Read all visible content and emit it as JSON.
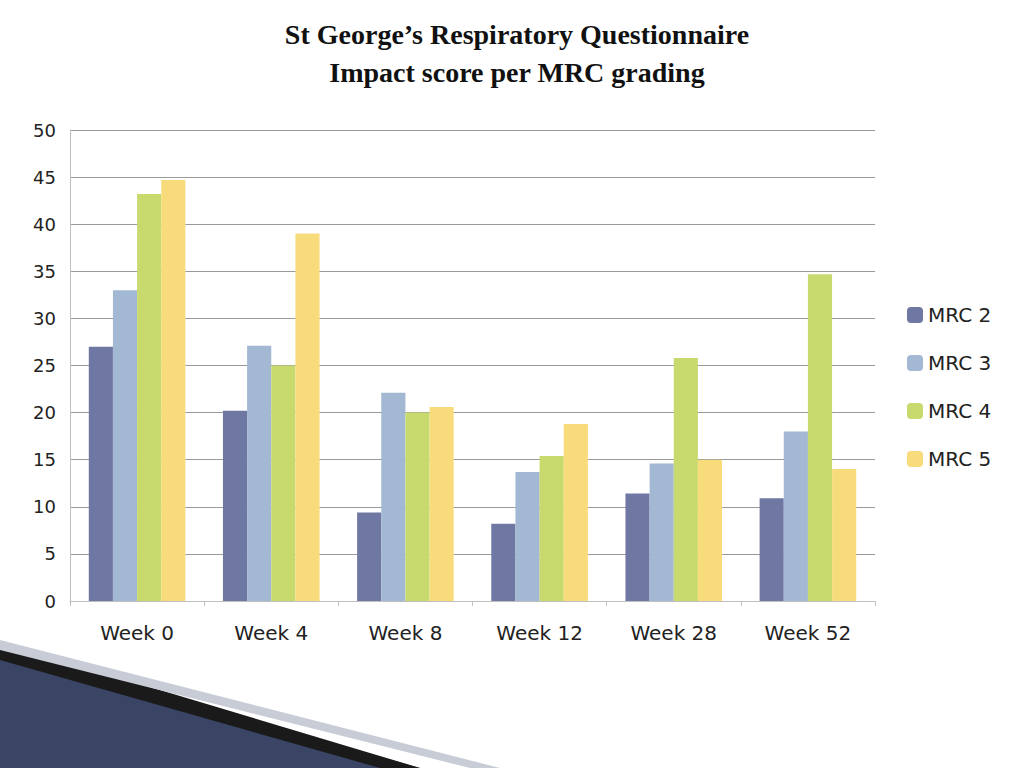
{
  "chart_data": {
    "type": "bar",
    "title": "St George’s Respiratory Questionnaire\nImpact score per MRC grading",
    "categories": [
      "Week 0",
      "Week 4",
      "Week 8",
      "Week 12",
      "Week 28",
      "Week 52"
    ],
    "series": [
      {
        "name": "MRC 2",
        "color": "#6f78a3",
        "values": [
          27,
          20.2,
          9.4,
          8.2,
          11.4,
          10.9
        ]
      },
      {
        "name": "MRC 3",
        "color": "#a3b8d2",
        "values": [
          33,
          27.1,
          22.1,
          13.7,
          14.6,
          18
        ]
      },
      {
        "name": "MRC 4",
        "color": "#c8da6e",
        "values": [
          43.2,
          25,
          20,
          15.4,
          25.8,
          34.7
        ]
      },
      {
        "name": "MRC 5",
        "color": "#f8dc7c",
        "values": [
          44.7,
          39,
          20.6,
          18.8,
          15,
          14
        ]
      }
    ],
    "ylim": [
      0,
      50
    ],
    "yticks": [
      0,
      5,
      10,
      15,
      20,
      25,
      30,
      35,
      40,
      45,
      50
    ],
    "grid": true,
    "legend": "right"
  }
}
